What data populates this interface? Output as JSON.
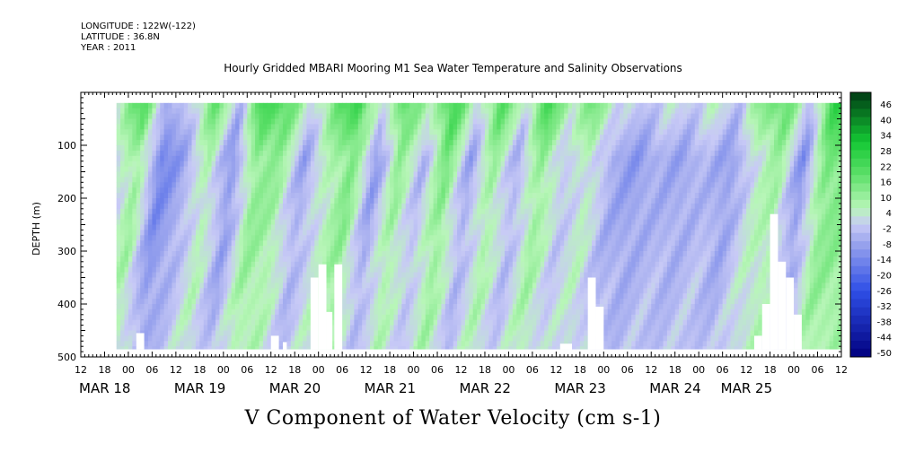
{
  "header": {
    "longitude": "LONGITUDE : 122W(-122)",
    "latitude": "LATITUDE : 36.8N",
    "year": "YEAR : 2011"
  },
  "chart_data": {
    "type": "heatmap",
    "title": "Hourly Gridded MBARI Mooring M1 Sea Water Temperature and Salinity Observations",
    "subtitle": "V Component of Water Velocity (cm s-1)",
    "ylabel": "DEPTH (m)",
    "ylim": [
      0,
      500
    ],
    "y_reversed": true,
    "y_ticks": [
      100,
      200,
      300,
      400,
      500
    ],
    "y_tick_labels": [
      "100",
      "200",
      "300",
      "400",
      "500"
    ],
    "x_hours_range": [
      -12,
      180
    ],
    "x_ticks_hours": [
      -12,
      -6,
      0,
      6,
      12,
      18,
      24,
      30,
      36,
      42,
      48,
      54,
      60,
      66,
      72,
      78,
      84,
      90,
      96,
      102,
      108,
      114,
      120,
      126,
      132,
      138,
      144,
      150,
      156,
      162,
      168,
      174,
      180
    ],
    "x_tick_labels": [
      "12",
      "18",
      "00",
      "06",
      "12",
      "18",
      "00",
      "06",
      "12",
      "18",
      "00",
      "06",
      "12",
      "18",
      "00",
      "06",
      "12",
      "18",
      "00",
      "06",
      "12",
      "18",
      "00",
      "06",
      "12",
      "18",
      "00",
      "06",
      "12",
      "18",
      "00",
      "06",
      "12"
    ],
    "day_labels": [
      {
        "label": "MAR 18",
        "hour": -12
      },
      {
        "label": "MAR 19",
        "hour": 12
      },
      {
        "label": "MAR 20",
        "hour": 36
      },
      {
        "label": "MAR 21",
        "hour": 60
      },
      {
        "label": "MAR 22",
        "hour": 84
      },
      {
        "label": "MAR 23",
        "hour": 108
      },
      {
        "label": "MAR 24",
        "hour": 132
      },
      {
        "label": "MAR 25",
        "hour": 150
      }
    ],
    "data_extent": {
      "hour_start": -3,
      "hour_end": 180,
      "depth_top": 20,
      "depth_bottom": 485
    },
    "colorbar": {
      "levels": [
        -50,
        -44,
        -38,
        -32,
        -26,
        -20,
        -14,
        -8,
        -2,
        4,
        10,
        16,
        22,
        28,
        34,
        40,
        46
      ],
      "labels": [
        "46",
        "40",
        "34",
        "28",
        "22",
        "16",
        "10",
        "4",
        "-2",
        "-8",
        "-14",
        "-20",
        "-26",
        "-32",
        "-38",
        "-44",
        "-50"
      ],
      "colors": {
        "neg_max": "#00007f",
        "neg_mid": "#2f4fe6",
        "neg_light": "#9fa8ee",
        "neg_pale": "#c8caf6",
        "pos_pale": "#b8f6b8",
        "pos_light": "#5ee06a",
        "pos_mid": "#14c834",
        "pos_max": "#003a14"
      }
    },
    "velocity_pattern": [
      {
        "hour": -2,
        "value": -3
      },
      {
        "hour": 4,
        "value": 10
      },
      {
        "hour": 10,
        "value": -18
      },
      {
        "hour": 16,
        "value": -9
      },
      {
        "hour": 22,
        "value": 6
      },
      {
        "hour": 28,
        "value": -14
      },
      {
        "hour": 34,
        "value": 12
      },
      {
        "hour": 40,
        "value": 9
      },
      {
        "hour": 46,
        "value": -10
      },
      {
        "hour": 52,
        "value": 4
      },
      {
        "hour": 58,
        "value": 14
      },
      {
        "hour": 64,
        "value": -12
      },
      {
        "hour": 70,
        "value": 10
      },
      {
        "hour": 76,
        "value": -6
      },
      {
        "hour": 82,
        "value": 14
      },
      {
        "hour": 88,
        "value": -10
      },
      {
        "hour": 94,
        "value": 9
      },
      {
        "hour": 100,
        "value": -8
      },
      {
        "hour": 106,
        "value": 11
      },
      {
        "hour": 112,
        "value": -4
      },
      {
        "hour": 118,
        "value": 4
      },
      {
        "hour": 124,
        "value": -9
      },
      {
        "hour": 130,
        "value": -12
      },
      {
        "hour": 136,
        "value": -8
      },
      {
        "hour": 142,
        "value": -10
      },
      {
        "hour": 148,
        "value": -6
      },
      {
        "hour": 154,
        "value": -12
      },
      {
        "hour": 160,
        "value": 2
      },
      {
        "hour": 166,
        "value": 8
      },
      {
        "hour": 172,
        "value": -14
      },
      {
        "hour": 178,
        "value": 14
      }
    ],
    "gaps": [
      {
        "hour_start": 2,
        "hour_end": 4,
        "depth_top": 455
      },
      {
        "hour_start": 36,
        "hour_end": 38,
        "depth_top": 460
      },
      {
        "hour_start": 39,
        "hour_end": 40,
        "depth_top": 472
      },
      {
        "hour_start": 46,
        "hour_end": 48,
        "depth_top": 350
      },
      {
        "hour_start": 48,
        "hour_end": 50,
        "depth_top": 325
      },
      {
        "hour_start": 50,
        "hour_end": 51.5,
        "depth_top": 415
      },
      {
        "hour_start": 52,
        "hour_end": 54,
        "depth_top": 325
      },
      {
        "hour_start": 109,
        "hour_end": 112,
        "depth_top": 475
      },
      {
        "hour_start": 116,
        "hour_end": 118,
        "depth_top": 350
      },
      {
        "hour_start": 118,
        "hour_end": 120,
        "depth_top": 405
      },
      {
        "hour_start": 158,
        "hour_end": 160,
        "depth_top": 460
      },
      {
        "hour_start": 160,
        "hour_end": 162,
        "depth_top": 400
      },
      {
        "hour_start": 162,
        "hour_end": 164,
        "depth_top": 230
      },
      {
        "hour_start": 164,
        "hour_end": 166,
        "depth_top": 320
      },
      {
        "hour_start": 166,
        "hour_end": 168,
        "depth_top": 350
      },
      {
        "hour_start": 168,
        "hour_end": 170,
        "depth_top": 420
      }
    ]
  }
}
